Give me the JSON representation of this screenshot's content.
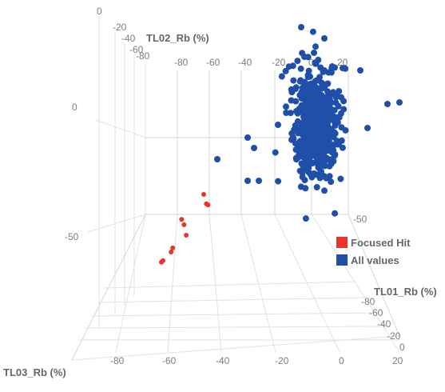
{
  "chart_data": {
    "type": "scatter",
    "projection": "3d",
    "axes": {
      "x": {
        "label": "TL01_Rb (%)",
        "ticks": [
          "-80",
          "-60",
          "-40",
          "-20",
          "0",
          "20"
        ]
      },
      "y": {
        "label": "TL02_Rb (%)",
        "ticks": [
          "0",
          "-20",
          "-40",
          "-60",
          "-80"
        ]
      },
      "z": {
        "label": "TL03_Rb (%)",
        "ticks": [
          "0",
          "-50"
        ]
      }
    },
    "top_face_ticks": [
      "-80",
      "-60",
      "-40",
      "-20",
      "0",
      "20"
    ],
    "right_face_z_tick": "-50",
    "bottom_x_ticks": [
      "-80",
      "-60",
      "-40",
      "-20",
      "0",
      "20"
    ],
    "bottom_y_ticks": [
      "-80",
      "-60",
      "-40",
      "-20",
      "0"
    ],
    "legend": {
      "position": "right",
      "entries": [
        {
          "name": "Focused Hit",
          "color": "#e8342c"
        },
        {
          "name": "All values",
          "color": "#1f4fa8"
        }
      ]
    },
    "series": [
      {
        "name": "Focused Hit",
        "color": "#e8342c",
        "points": [
          {
            "x": -45,
            "y": -60,
            "z": -40
          },
          {
            "x": -44,
            "y": -58,
            "z": -47
          },
          {
            "x": -43,
            "y": -59,
            "z": -48
          },
          {
            "x": -58,
            "y": -52,
            "z": -58
          },
          {
            "x": -57,
            "y": -51,
            "z": -62
          },
          {
            "x": -56,
            "y": -50,
            "z": -70
          },
          {
            "x": -64,
            "y": -45,
            "z": -79
          },
          {
            "x": -65,
            "y": -44,
            "z": -82
          },
          {
            "x": -70,
            "y": -40,
            "z": -88
          },
          {
            "x": -71,
            "y": -39,
            "z": -89
          }
        ]
      },
      {
        "name": "All values",
        "color": "#1f4fa8",
        "approx_count": 600,
        "center": {
          "x": 0,
          "y": 0,
          "z": 0
        },
        "spread": {
          "x": 6,
          "y": 6,
          "z": 10
        }
      }
    ]
  }
}
